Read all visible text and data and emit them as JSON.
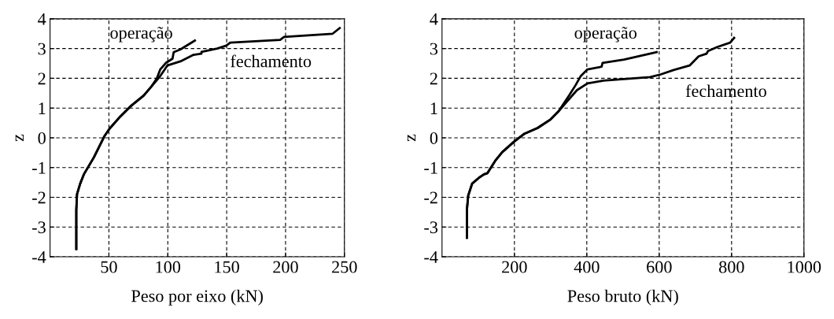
{
  "chart_data": [
    {
      "type": "line",
      "xlabel": "Peso por eixo (kN)",
      "ylabel": "z",
      "xlim": [
        0,
        250
      ],
      "xticks": [
        50,
        100,
        150,
        200,
        250
      ],
      "ylim": [
        -4,
        4
      ],
      "yticks": [
        -4,
        -3,
        -2,
        -1,
        0,
        1,
        2,
        3,
        4
      ],
      "grid": true,
      "legend": false,
      "line_style": "solid",
      "marker": "none",
      "series": [
        {
          "name": "operação",
          "color": "#000000",
          "x": [
            22.3,
            22.3,
            22.9,
            25.6,
            28.7,
            37.2,
            46.1,
            50.6,
            59.5,
            68.4,
            79.5,
            86.2,
            90.7,
            93.6,
            98.5,
            104,
            105,
            110.7,
            123
          ],
          "values": [
            -3.74,
            -2.43,
            -1.9,
            -1.54,
            -1.23,
            -0.66,
            0.05,
            0.31,
            0.71,
            1.06,
            1.42,
            1.73,
            2.0,
            2.3,
            2.52,
            2.66,
            2.88,
            2.97,
            3.27
          ]
        },
        {
          "name": "fechamento",
          "color": "#000000",
          "x": [
            22.3,
            22.3,
            22.9,
            25.6,
            28.7,
            37.2,
            46.1,
            50.6,
            59.5,
            68.4,
            79.5,
            86.2,
            92.9,
            99.6,
            110.7,
            121.9,
            128.6,
            128.6,
            142,
            149.7,
            153,
            195.4,
            198.7,
            240,
            246
          ],
          "values": [
            -3.74,
            -2.43,
            -1.9,
            -1.54,
            -1.23,
            -0.66,
            0.05,
            0.31,
            0.71,
            1.06,
            1.42,
            1.73,
            2.04,
            2.43,
            2.57,
            2.79,
            2.83,
            2.89,
            3.0,
            3.1,
            3.2,
            3.29,
            3.39,
            3.5,
            3.69
          ]
        }
      ]
    },
    {
      "type": "line",
      "xlabel": "Peso bruto (kN)",
      "ylabel": "z",
      "xlim": [
        0,
        1000
      ],
      "xticks": [
        200,
        400,
        600,
        800,
        1000
      ],
      "ylim": [
        -4,
        4
      ],
      "yticks": [
        -4,
        -3,
        -2,
        -1,
        0,
        1,
        2,
        3,
        4
      ],
      "grid": true,
      "legend": false,
      "line_style": "solid",
      "marker": "none",
      "series": [
        {
          "name": "operação",
          "color": "#000000",
          "x": [
            68.7,
            68.7,
            72.4,
            83.2,
            101.3,
            115.8,
            125.2,
            148.3,
            166.4,
            199,
            228,
            264,
            300,
            322,
            351,
            369,
            383.5,
            402,
            441,
            443.6,
            503,
            593
          ],
          "values": [
            -3.36,
            -2.43,
            -1.94,
            -1.54,
            -1.35,
            -1.23,
            -1.19,
            -0.75,
            -0.48,
            -0.13,
            0.14,
            0.33,
            0.62,
            0.89,
            1.42,
            1.77,
            2.08,
            2.3,
            2.39,
            2.52,
            2.63,
            2.88
          ]
        },
        {
          "name": "fechamento",
          "color": "#000000",
          "x": [
            68.7,
            68.7,
            72.4,
            83.2,
            101.3,
            115.8,
            125.2,
            148.3,
            166.4,
            199,
            228,
            264,
            300,
            322,
            344,
            372.7,
            402,
            445,
            575,
            604,
            640,
            684,
            709,
            731,
            735,
            760,
            796,
            807
          ],
          "values": [
            -3.36,
            -2.43,
            -1.94,
            -1.54,
            -1.35,
            -1.23,
            -1.19,
            -0.75,
            -0.48,
            -0.13,
            0.14,
            0.33,
            0.62,
            0.89,
            1.2,
            1.6,
            1.83,
            1.92,
            2.04,
            2.13,
            2.28,
            2.43,
            2.74,
            2.83,
            2.92,
            3.05,
            3.2,
            3.36
          ]
        }
      ]
    }
  ]
}
